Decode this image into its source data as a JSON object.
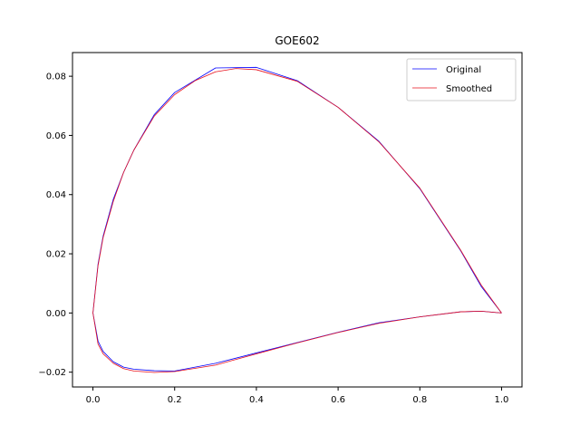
{
  "chart_data": {
    "type": "line",
    "title": "GOE602",
    "xlabel": "",
    "ylabel": "",
    "xlim": [
      -0.05,
      1.05
    ],
    "ylim": [
      -0.025,
      0.088
    ],
    "x_ticks": [
      0.0,
      0.2,
      0.4,
      0.6,
      0.8,
      1.0
    ],
    "x_tick_labels": [
      "0.0",
      "0.2",
      "0.4",
      "0.6",
      "0.8",
      "1.0"
    ],
    "y_ticks": [
      -0.02,
      0.0,
      0.02,
      0.04,
      0.06,
      0.08
    ],
    "y_tick_labels": [
      "−0.02",
      "0.00",
      "0.02",
      "0.04",
      "0.06",
      "0.08"
    ],
    "grid": false,
    "legend_position": "top-right",
    "series": [
      {
        "name": "Original",
        "color": "#0000ff",
        "points": [
          [
            1.0,
            0.0
          ],
          [
            0.95,
            0.009
          ],
          [
            0.9,
            0.021
          ],
          [
            0.8,
            0.042
          ],
          [
            0.7,
            0.058
          ],
          [
            0.6,
            0.0695
          ],
          [
            0.5,
            0.0785
          ],
          [
            0.4,
            0.083
          ],
          [
            0.3,
            0.0828
          ],
          [
            0.2,
            0.0745
          ],
          [
            0.15,
            0.067
          ],
          [
            0.1,
            0.055
          ],
          [
            0.075,
            0.0475
          ],
          [
            0.05,
            0.0385
          ],
          [
            0.025,
            0.026
          ],
          [
            0.0125,
            0.0165
          ],
          [
            0.0,
            0.0
          ],
          [
            0.0125,
            -0.0095
          ],
          [
            0.025,
            -0.013
          ],
          [
            0.05,
            -0.0165
          ],
          [
            0.075,
            -0.0183
          ],
          [
            0.1,
            -0.019
          ],
          [
            0.15,
            -0.0195
          ],
          [
            0.2,
            -0.0196
          ],
          [
            0.3,
            -0.017
          ],
          [
            0.4,
            -0.0135
          ],
          [
            0.5,
            -0.01
          ],
          [
            0.6,
            -0.0065
          ],
          [
            0.7,
            -0.0033
          ],
          [
            0.8,
            -0.0013
          ],
          [
            0.9,
            0.0004
          ],
          [
            0.95,
            0.0006
          ],
          [
            1.0,
            0.0
          ]
        ]
      },
      {
        "name": "Smoothed",
        "color": "#e8121e",
        "points": [
          [
            1.0,
            0.0
          ],
          [
            0.95,
            0.0095
          ],
          [
            0.9,
            0.0212
          ],
          [
            0.8,
            0.0422
          ],
          [
            0.7,
            0.0578
          ],
          [
            0.6,
            0.0695
          ],
          [
            0.5,
            0.0783
          ],
          [
            0.4,
            0.0822
          ],
          [
            0.35,
            0.0826
          ],
          [
            0.3,
            0.0815
          ],
          [
            0.25,
            0.0785
          ],
          [
            0.2,
            0.0738
          ],
          [
            0.15,
            0.0665
          ],
          [
            0.1,
            0.055
          ],
          [
            0.075,
            0.0475
          ],
          [
            0.05,
            0.0378
          ],
          [
            0.025,
            0.0255
          ],
          [
            0.0125,
            0.016
          ],
          [
            0.0,
            0.0
          ],
          [
            0.0125,
            -0.0105
          ],
          [
            0.025,
            -0.0138
          ],
          [
            0.05,
            -0.017
          ],
          [
            0.075,
            -0.0188
          ],
          [
            0.1,
            -0.0196
          ],
          [
            0.15,
            -0.0201
          ],
          [
            0.2,
            -0.0198
          ],
          [
            0.3,
            -0.0176
          ],
          [
            0.4,
            -0.0138
          ],
          [
            0.5,
            -0.0101
          ],
          [
            0.6,
            -0.0066
          ],
          [
            0.7,
            -0.0035
          ],
          [
            0.8,
            -0.0013
          ],
          [
            0.9,
            0.0004
          ],
          [
            0.95,
            0.0006
          ],
          [
            1.0,
            0.0
          ]
        ]
      }
    ]
  }
}
